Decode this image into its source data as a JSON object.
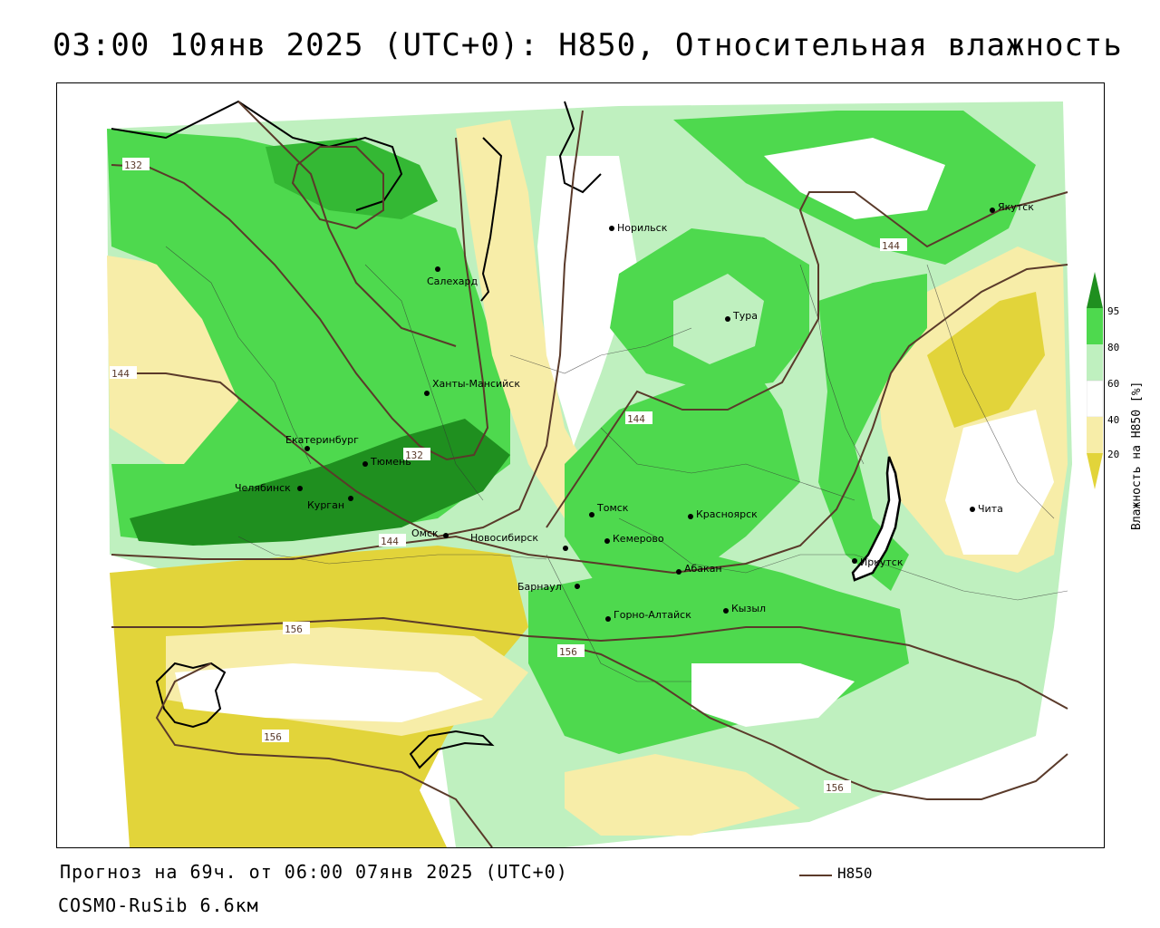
{
  "title": "03:00 10янв 2025 (UTC+0): H850, Относительная влажность",
  "footer": {
    "forecast": "Прогноз на 69ч. от 06:00 07янв 2025 (UTC+0)",
    "model": "COSMO-RuSib 6.6км"
  },
  "legend": {
    "line_label": "H850",
    "line_color": "#5a3a2a"
  },
  "colorbar": {
    "title": "Влажность на H850 [%]",
    "ticks": [
      "95",
      "80",
      "60",
      "40",
      "20"
    ],
    "colors": {
      "c95": "#1f8f1f",
      "c80": "#4ed94e",
      "c60": "#bff0bf",
      "c40": "#ffffff",
      "c20": "#f7eda8",
      "c0": "#e2d43a"
    }
  },
  "cities": [
    {
      "name": "Норильск"
    },
    {
      "name": "Якутск"
    },
    {
      "name": "Салехард"
    },
    {
      "name": "Тура"
    },
    {
      "name": "Ханты-Мансийск"
    },
    {
      "name": "Екатеринбург"
    },
    {
      "name": "Тюмень"
    },
    {
      "name": "Челябинск"
    },
    {
      "name": "Курган"
    },
    {
      "name": "Омск"
    },
    {
      "name": "Томск"
    },
    {
      "name": "Красноярск"
    },
    {
      "name": "Новосибирск"
    },
    {
      "name": "Кемерово"
    },
    {
      "name": "Абакан"
    },
    {
      "name": "Барнаул"
    },
    {
      "name": "Иркутск"
    },
    {
      "name": "Чита"
    },
    {
      "name": "Горно-Алтайск"
    },
    {
      "name": "Кызыл"
    }
  ],
  "contour_labels": [
    "132",
    "144",
    "132",
    "144",
    "144",
    "144",
    "156",
    "156",
    "156",
    "156"
  ]
}
